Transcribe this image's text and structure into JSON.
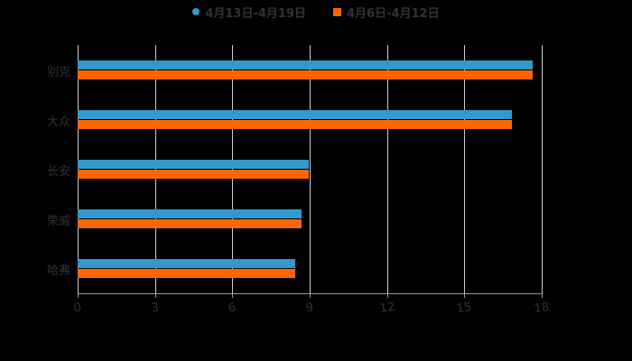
{
  "legend": {
    "items": [
      {
        "label": "4月13日-4月19日",
        "color": "#3399cc",
        "marker": "circle"
      },
      {
        "label": "4月6日-4月12日",
        "color": "#ff6600",
        "marker": "square"
      }
    ]
  },
  "x_axis": {
    "ticks": [
      "0",
      "3",
      "6",
      "9",
      "12",
      "15",
      "18"
    ]
  },
  "chart_data": {
    "type": "bar",
    "orientation": "horizontal",
    "title": "",
    "xlabel": "",
    "ylabel": "",
    "categories": [
      "别克",
      "大众",
      "长安",
      "荣威",
      "哈弗"
    ],
    "series": [
      {
        "name": "4月13日-4月19日",
        "color": "#3399cc",
        "values": [
          17.65,
          16.85,
          8.95,
          8.7,
          8.45
        ]
      },
      {
        "name": "4月6日-4月12日",
        "color": "#ff6600",
        "values": [
          17.65,
          16.85,
          8.95,
          8.7,
          8.45
        ]
      }
    ],
    "xlim": [
      0,
      18
    ],
    "x_ticks": [
      0,
      3,
      6,
      9,
      12,
      15,
      18
    ],
    "grid": true,
    "legend_position": "top"
  }
}
